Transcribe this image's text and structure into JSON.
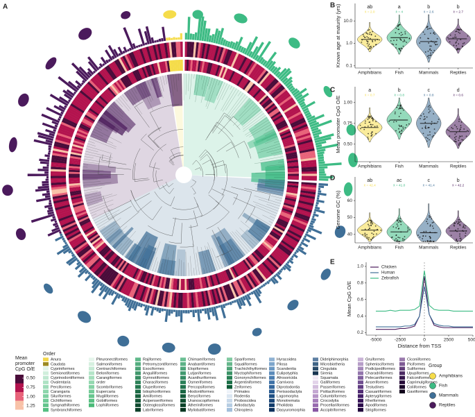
{
  "panel_a": {
    "label": "A",
    "colorbar": {
      "title_lines": [
        "Mean",
        "promoter",
        "CpG O/E"
      ],
      "ticks": [
        {
          "value": 0.5,
          "label": "0.50"
        },
        {
          "value": 0.75,
          "label": "0.75"
        },
        {
          "value": 1.0,
          "label": "1.00"
        },
        {
          "value": 1.25,
          "label": "1.25"
        }
      ],
      "colors": [
        "#4a0c3a",
        "#b3134e",
        "#e8637a",
        "#f8c2a8"
      ]
    },
    "order_legend": {
      "title": "Order",
      "columns": [
        {
          "names": [
            "Anura",
            "Caudata",
            "Cypriniformes",
            "Semionotiformes",
            "Cyprinodontiformes",
            "Ovalentaria",
            "Perciformes",
            "Carangaria",
            "Siluriformes",
            "Cichliformes",
            "Syngnathiformes",
            "Synbranchiformes"
          ],
          "colors": [
            "#f2d64b",
            "#9c8a22",
            "#e3f4e9",
            "#d0eedc",
            "#bfe8d0",
            "#aee2c4",
            "#9ddcb8",
            "#8dd6ac",
            "#7ed0a1",
            "#6fca96",
            "#61c48b",
            "#54be81"
          ]
        },
        {
          "names": [
            "Pleuronectiformes",
            "Salmoniformes",
            "Centrarchiformes",
            "Beloniformes",
            "Carangiformes",
            "order",
            "Scombriformes",
            "Eupercaria",
            "Mugiliformes",
            "Gobiiformes",
            "Lophiiformes"
          ],
          "colors": [
            "#e6f6ec",
            "#d6f0e0",
            "#c5ead4",
            "#b4e4c8",
            "#a4debc",
            "#94d8b0",
            "#84d2a4",
            "#75cc98",
            "#66c68d",
            "#58c082",
            "#4aba77"
          ]
        },
        {
          "names": [
            "Rajiformes",
            "Petromyzontiformes",
            "Esociformes",
            "Anguilliformes",
            "Gymnotiformes",
            "Characiformes",
            "Clupeiformes",
            "Istiophoriformes",
            "Amiiformes",
            "Acipenseriformes",
            "Osteoglossiformes",
            "Labriformes"
          ],
          "colors": [
            "#5fb98a",
            "#55ae80",
            "#4ba376",
            "#41986c",
            "#378d62",
            "#2d8258",
            "#23774e",
            "#1d6c46",
            "#18613e",
            "#135636",
            "#0f4b2f",
            "#0b4028"
          ]
        },
        {
          "names": [
            "Chimaeriformes",
            "Anabantiformes",
            "Elopiformes",
            "Lutjaniformes",
            "Acanthuriformes",
            "Osmeriformes",
            "Percopsiformes",
            "Hiodontiformes",
            "Beryciformes",
            "Uranoscopiformes",
            "Atheriniformes",
            "Myliobatiformes"
          ],
          "colors": [
            "#6abf93",
            "#5cb287",
            "#4ea67b",
            "#41996f",
            "#358c63",
            "#2a8058",
            "#21734d",
            "#196743",
            "#135a39",
            "#0e4e30",
            "#0a4228",
            "#063620"
          ]
        },
        {
          "names": [
            "Spariformes",
            "Squaliformes",
            "Trachichthyiformes",
            "Myctophiformes",
            "Gonorynchiformes",
            "Argentiniformes",
            "Zeiformes",
            "Primates",
            "Rodentia",
            "Proboscidea",
            "Artiodactyla",
            "Chiroptera"
          ],
          "colors": [
            "#7fc9a0",
            "#66b78c",
            "#4ea578",
            "#3a9366",
            "#288155",
            "#196f45",
            "#0d5c37",
            "#eef3f9",
            "#dbe6f1",
            "#c8d9ea",
            "#b5cce2",
            "#a2bfdb"
          ]
        },
        {
          "names": [
            "Hyracoidea",
            "Pilosa",
            "Scandentia",
            "Eulipotyphla",
            "Afrosoricida",
            "Carnivora",
            "Diprotodontia",
            "Perissodactyla",
            "Lagomorpha",
            "Monotremata",
            "Pholidota",
            "Dasyuromorphia"
          ],
          "colors": [
            "#8fb2d3",
            "#7da5cb",
            "#6b98c3",
            "#5b8bba",
            "#4c7eb1",
            "#3f72a7",
            "#33669c",
            "#285a90",
            "#1f4f83",
            "#174476",
            "#103a69",
            "#0a305c"
          ]
        },
        {
          "names": [
            "Didelphimorphia",
            "Microbiotheria",
            "Cingulata",
            "Sirenia",
            "Squamata",
            "Galliformes",
            "Passeriformes",
            "Psittaciformes",
            "Columbiformes",
            "Crocodylia",
            "Procellariiformes",
            "Accipitriformes"
          ],
          "colors": [
            "#5d7fa3",
            "#3f6486",
            "#294b6a",
            "#173450",
            "#f1e9f4",
            "#e2d3e9",
            "#d3bddd",
            "#c4a8d2",
            "#b593c6",
            "#a67ebb",
            "#9769af",
            "#8855a3"
          ]
        },
        {
          "names": [
            "Gruiformes",
            "Sphenisciformes",
            "Podicipediformes",
            "Charadriiformes",
            "Pelecaniformes",
            "Anseriformes",
            "Testudines",
            "Casuariiformes",
            "Apterygiformes",
            "Rheiformes",
            "Apodiformes",
            "Strigiformes"
          ],
          "colors": [
            "#c9b3d6",
            "#b79ec8",
            "#a589ba",
            "#9375ac",
            "#81619e",
            "#704e90",
            "#603c82",
            "#512c74",
            "#431e66",
            "#361358",
            "#2a0a4a",
            "#20053c"
          ]
        },
        {
          "names": [
            "Ciconiiformes",
            "Piciformes",
            "Suliformes",
            "Upupiformes",
            "Falconiformes",
            "Caprimulgiformes",
            "Coliiformes",
            "Gaviiformes"
          ],
          "colors": [
            "#9a7aad",
            "#7e5a95",
            "#64407c",
            "#4c2a64",
            "#37184d",
            "#260b38",
            "#190527",
            "#10021a"
          ]
        }
      ]
    },
    "group_legend": {
      "title": "Group",
      "names": [
        "Amphibians",
        "Fish",
        "Mammals",
        "Reptiles"
      ],
      "colors": [
        "#f5dc4a",
        "#3dbb84",
        "#3f6f97",
        "#4b1a5c"
      ]
    }
  },
  "chart_data": [
    {
      "type": "violin",
      "label": "B",
      "ylabel": "Known age at maturity (yrs)",
      "log_scale": true,
      "categories": [
        "Amphibians",
        "Fish",
        "Mammals",
        "Reptiles"
      ],
      "colors": [
        "#f5dc4a",
        "#3dbb84",
        "#3f6f97",
        "#4b1a5c"
      ],
      "letters": [
        "ab",
        "a",
        "b",
        "b"
      ],
      "mean_labels": [
        "x̄ = 2.0",
        "x̄ = 4",
        "x̄ = 2.6",
        "x̄ = 2.7"
      ],
      "medians": [
        1.5,
        1.8,
        1.2,
        1.6
      ],
      "ylim": [
        0.08,
        60
      ],
      "yticks": [
        0.1,
        {
          "value": 1,
          "label": "1.0"
        },
        {
          "value": 10,
          "label": "10.0"
        }
      ]
    },
    {
      "type": "violin",
      "label": "C",
      "ylabel": "Mean promoter CpG O/E",
      "categories": [
        "Amphibians",
        "Fish",
        "Mammals",
        "Reptiles"
      ],
      "colors": [
        "#f5dc4a",
        "#3dbb84",
        "#3f6f97",
        "#4b1a5c"
      ],
      "letters": [
        "a",
        "b",
        "c",
        "d"
      ],
      "mean_labels": [
        "x̄ = 0.7",
        "x̄ = 0.8",
        "x̄ = 0.8",
        "x̄ = 0.6"
      ],
      "medians": [
        0.7,
        0.79,
        0.75,
        0.65
      ],
      "ylim": [
        0.29,
        1.19
      ],
      "yticks": [
        {
          "value": 0.5,
          "label": "0.50"
        },
        0.75,
        {
          "value": 1,
          "label": "1.00"
        }
      ]
    },
    {
      "type": "violin",
      "label": "D",
      "ylabel": "Genome GC (%)",
      "categories": [
        "Amphibians",
        "Fish",
        "Mammals",
        "Reptiles"
      ],
      "colors": [
        "#f5dc4a",
        "#3dbb84",
        "#3f6f97",
        "#4b1a5c"
      ],
      "letters": [
        "ab",
        "ac",
        "c",
        "b"
      ],
      "mean_labels": [
        "x̄ = 42.4",
        "x̄ = 41.0",
        "x̄ = 41.4",
        "x̄ = 42.2"
      ],
      "medians": [
        42.5,
        41.5,
        41,
        42
      ],
      "ylim": [
        35,
        74
      ],
      "yticks": [
        40,
        50,
        60
      ]
    },
    {
      "type": "line",
      "label": "E",
      "ylabel": "Mean CpG O/E",
      "xlabel": "Distance from TSS",
      "x": [
        -5000,
        -4500,
        -4000,
        -3500,
        -3000,
        -2500,
        -2000,
        -1500,
        -1000,
        -500,
        0,
        500,
        1000,
        1500,
        2000,
        2500,
        3000,
        3500,
        4000,
        4500,
        5000
      ],
      "series": [
        {
          "name": "Chicken",
          "color": "#4b1a5c",
          "values": [
            0.24,
            0.24,
            0.24,
            0.24,
            0.24,
            0.25,
            0.25,
            0.26,
            0.28,
            0.4,
            0.88,
            0.42,
            0.29,
            0.27,
            0.26,
            0.26,
            0.26,
            0.26,
            0.26,
            0.26,
            0.26
          ]
        },
        {
          "name": "Human",
          "color": "#3f6f97",
          "values": [
            0.27,
            0.27,
            0.27,
            0.27,
            0.27,
            0.27,
            0.28,
            0.28,
            0.3,
            0.4,
            0.76,
            0.42,
            0.31,
            0.29,
            0.28,
            0.28,
            0.27,
            0.27,
            0.27,
            0.27,
            0.27
          ]
        },
        {
          "name": "Zebrafish",
          "color": "#3dbb84",
          "values": [
            0.46,
            0.46,
            0.46,
            0.47,
            0.46,
            0.47,
            0.47,
            0.47,
            0.48,
            0.52,
            0.95,
            0.53,
            0.48,
            0.47,
            0.47,
            0.47,
            0.46,
            0.46,
            0.46,
            0.46,
            0.46
          ]
        }
      ],
      "reference_x": 0,
      "xlim": [
        -6000,
        5000
      ],
      "xticks": [
        -5000,
        -2500,
        0,
        2500,
        5000
      ],
      "ylim": [
        0.17,
        1.05
      ],
      "yticks": [
        0.2,
        0.4,
        0.6,
        0.8,
        {
          "value": 1,
          "label": "1.0"
        }
      ]
    }
  ]
}
